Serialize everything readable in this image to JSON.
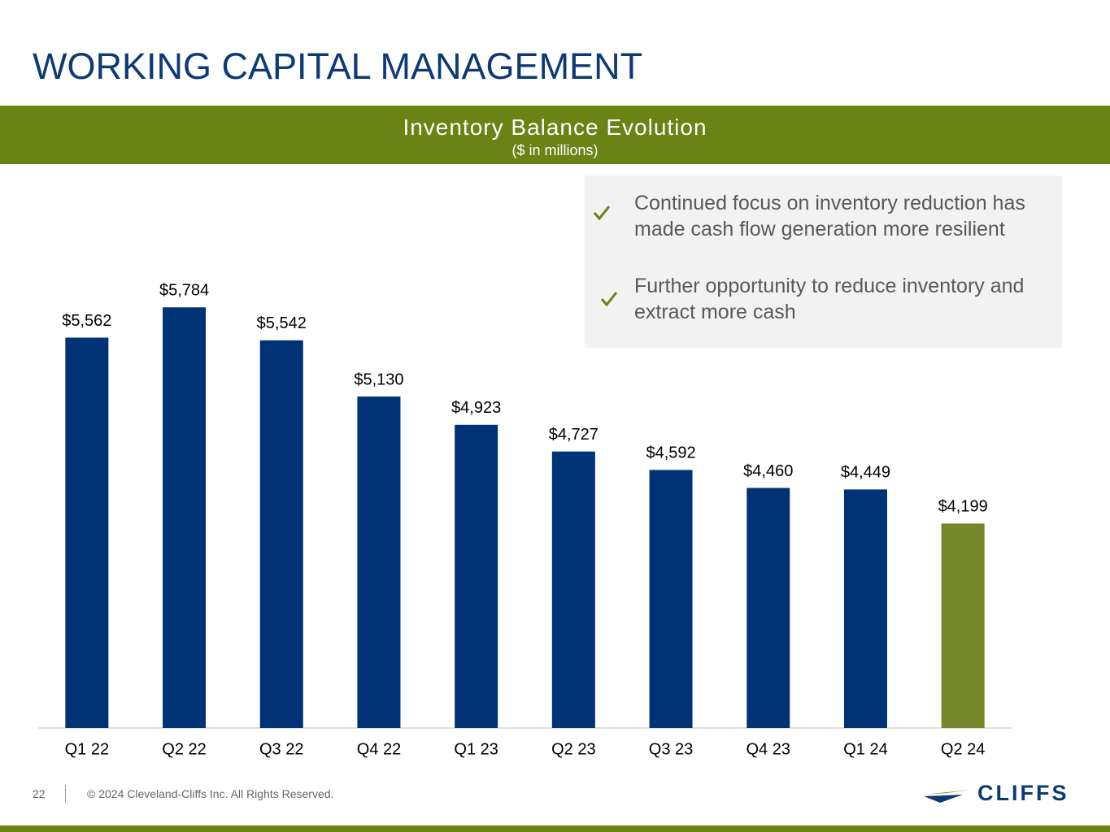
{
  "header": {
    "title": "WORKING CAPITAL MANAGEMENT"
  },
  "chart_data": {
    "type": "bar",
    "title": "Inventory Balance Evolution",
    "subtitle": "($ in millions)",
    "categories": [
      "Q1 22",
      "Q2 22",
      "Q3 22",
      "Q4 22",
      "Q1 23",
      "Q2 23",
      "Q3 23",
      "Q4 23",
      "Q1 24",
      "Q2 24"
    ],
    "values": [
      5562,
      5784,
      5542,
      5130,
      4923,
      4727,
      4592,
      4460,
      4449,
      4199
    ],
    "value_labels": [
      "$5,562",
      "$5,784",
      "$5,542",
      "$5,130",
      "$4,923",
      "$4,727",
      "$4,592",
      "$4,460",
      "$4,449",
      "$4,199"
    ],
    "colors": [
      "#003375",
      "#003375",
      "#003375",
      "#003375",
      "#003375",
      "#003375",
      "#003375",
      "#003375",
      "#003375",
      "#76862a"
    ],
    "ylim": [
      2700,
      6000
    ]
  },
  "bullets": [
    "Continued focus on inventory reduction has made cash flow generation more resilient",
    "Further opportunity to reduce inventory and extract more cash"
  ],
  "footer": {
    "page": "22",
    "copyright": "© 2024 Cleveland-Cliffs Inc. All Rights Reserved.",
    "logo": "CLIFFS"
  }
}
